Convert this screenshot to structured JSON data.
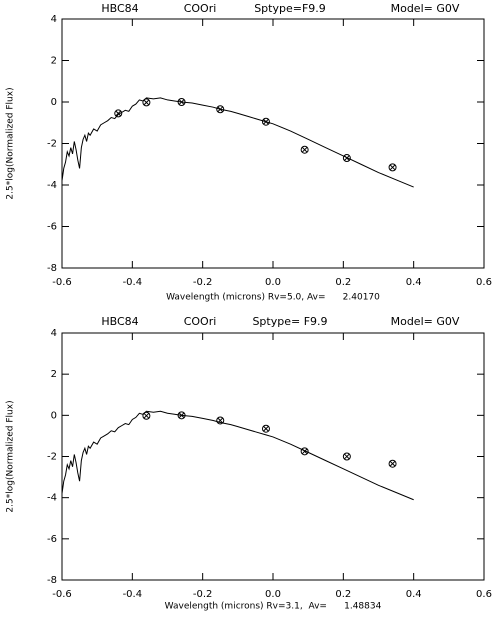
{
  "chart_data": [
    {
      "type": "line",
      "title": [
        "HBC84",
        "COOri",
        "Sptype=F9.9",
        "Model= G0V"
      ],
      "xlabel": "Wavelength (microns) Rv=5.0, Av=      2.40170",
      "ylabel": "2.5*log(Normalized Flux)",
      "xlim": [
        -0.6,
        0.6
      ],
      "xticks": [
        -0.6,
        -0.4,
        -0.2,
        {
          "value": 0,
          "label": "0.0"
        },
        0.2,
        0.4,
        0.6
      ],
      "ylim": [
        -8,
        4
      ],
      "yticks": [
        -8,
        -6,
        -4,
        -2,
        0,
        2,
        4
      ],
      "series": [
        {
          "style": "line",
          "color": "#000000",
          "x": [
            -0.6,
            -0.595,
            -0.59,
            -0.585,
            -0.58,
            -0.575,
            -0.57,
            -0.565,
            -0.56,
            -0.555,
            -0.55,
            -0.545,
            -0.54,
            -0.535,
            -0.53,
            -0.525,
            -0.52,
            -0.51,
            -0.5,
            -0.49,
            -0.48,
            -0.47,
            -0.46,
            -0.45,
            -0.44,
            -0.43,
            -0.42,
            -0.41,
            -0.4,
            -0.39,
            -0.38,
            -0.37,
            -0.36,
            -0.34,
            -0.32,
            -0.3,
            -0.28,
            -0.26,
            -0.23,
            -0.2,
            -0.17,
            -0.15,
            -0.12,
            -0.1,
            -0.07,
            -0.05,
            -0.02,
            0,
            0.05,
            0.1,
            0.15,
            0.2,
            0.25,
            0.3,
            0.35,
            0.4
          ],
          "values": [
            -3.8,
            -3.2,
            -2.9,
            -2.4,
            -2.6,
            -2.2,
            -2.5,
            -1.9,
            -2.3,
            -2.8,
            -3.2,
            -2.2,
            -1.8,
            -1.6,
            -1.9,
            -1.5,
            -1.6,
            -1.3,
            -1.4,
            -1.1,
            -1.0,
            -0.9,
            -0.75,
            -0.8,
            -0.6,
            -0.5,
            -0.4,
            -0.45,
            -0.2,
            -0.1,
            0.1,
            0.05,
            0.2,
            0.15,
            0.2,
            0.1,
            0.05,
            0.0,
            -0.05,
            -0.15,
            -0.25,
            -0.35,
            -0.45,
            -0.55,
            -0.7,
            -0.8,
            -0.95,
            -1.05,
            -1.4,
            -1.8,
            -2.2,
            -2.6,
            -3.0,
            -3.4,
            -3.75,
            -4.1
          ]
        },
        {
          "style": "points",
          "color": "#000000",
          "x": [
            -0.44,
            -0.36,
            -0.26,
            -0.15,
            -0.02,
            0.09,
            0.21,
            0.34
          ],
          "values": [
            -0.55,
            -0.02,
            0.0,
            -0.35,
            -0.95,
            -2.3,
            -2.7,
            -3.15
          ]
        }
      ]
    },
    {
      "type": "line",
      "title": [
        "HBC84",
        "COOri",
        "Sptype= F9.9",
        "Model= G0V"
      ],
      "xlabel": "Wavelength (microns) Rv=3.1,  Av=      1.48834",
      "ylabel": "2.5*log(Normalized Flux)",
      "xlim": [
        -0.6,
        0.6
      ],
      "xticks": [
        -0.6,
        -0.4,
        -0.2,
        {
          "value": 0,
          "label": "0.0"
        },
        0.2,
        0.4,
        0.6
      ],
      "ylim": [
        -8,
        4
      ],
      "yticks": [
        -8,
        -6,
        -4,
        -2,
        0,
        2,
        4
      ],
      "series": [
        {
          "style": "line",
          "color": "#000000",
          "x": [
            -0.6,
            -0.595,
            -0.59,
            -0.585,
            -0.58,
            -0.575,
            -0.57,
            -0.565,
            -0.56,
            -0.555,
            -0.55,
            -0.545,
            -0.54,
            -0.535,
            -0.53,
            -0.525,
            -0.52,
            -0.51,
            -0.5,
            -0.49,
            -0.48,
            -0.47,
            -0.46,
            -0.45,
            -0.44,
            -0.43,
            -0.42,
            -0.41,
            -0.4,
            -0.39,
            -0.38,
            -0.37,
            -0.36,
            -0.34,
            -0.32,
            -0.3,
            -0.28,
            -0.26,
            -0.23,
            -0.2,
            -0.17,
            -0.15,
            -0.12,
            -0.1,
            -0.07,
            -0.05,
            -0.02,
            0,
            0.05,
            0.1,
            0.15,
            0.2,
            0.25,
            0.3,
            0.35,
            0.4
          ],
          "values": [
            -3.8,
            -3.2,
            -2.9,
            -2.4,
            -2.6,
            -2.2,
            -2.5,
            -1.9,
            -2.3,
            -2.8,
            -3.2,
            -2.2,
            -1.8,
            -1.6,
            -1.9,
            -1.5,
            -1.6,
            -1.3,
            -1.4,
            -1.1,
            -1.0,
            -0.9,
            -0.75,
            -0.8,
            -0.6,
            -0.5,
            -0.4,
            -0.45,
            -0.2,
            -0.1,
            0.1,
            0.05,
            0.2,
            0.15,
            0.2,
            0.1,
            0.05,
            0.0,
            -0.05,
            -0.15,
            -0.25,
            -0.35,
            -0.45,
            -0.55,
            -0.7,
            -0.8,
            -0.95,
            -1.05,
            -1.4,
            -1.8,
            -2.2,
            -2.6,
            -3.0,
            -3.4,
            -3.75,
            -4.1
          ]
        },
        {
          "style": "points",
          "color": "#000000",
          "x": [
            -0.36,
            -0.26,
            -0.15,
            -0.02,
            0.09,
            0.21,
            0.34
          ],
          "values": [
            -0.02,
            0.0,
            -0.25,
            -0.65,
            -1.75,
            -2.0,
            -2.35
          ]
        }
      ]
    }
  ]
}
